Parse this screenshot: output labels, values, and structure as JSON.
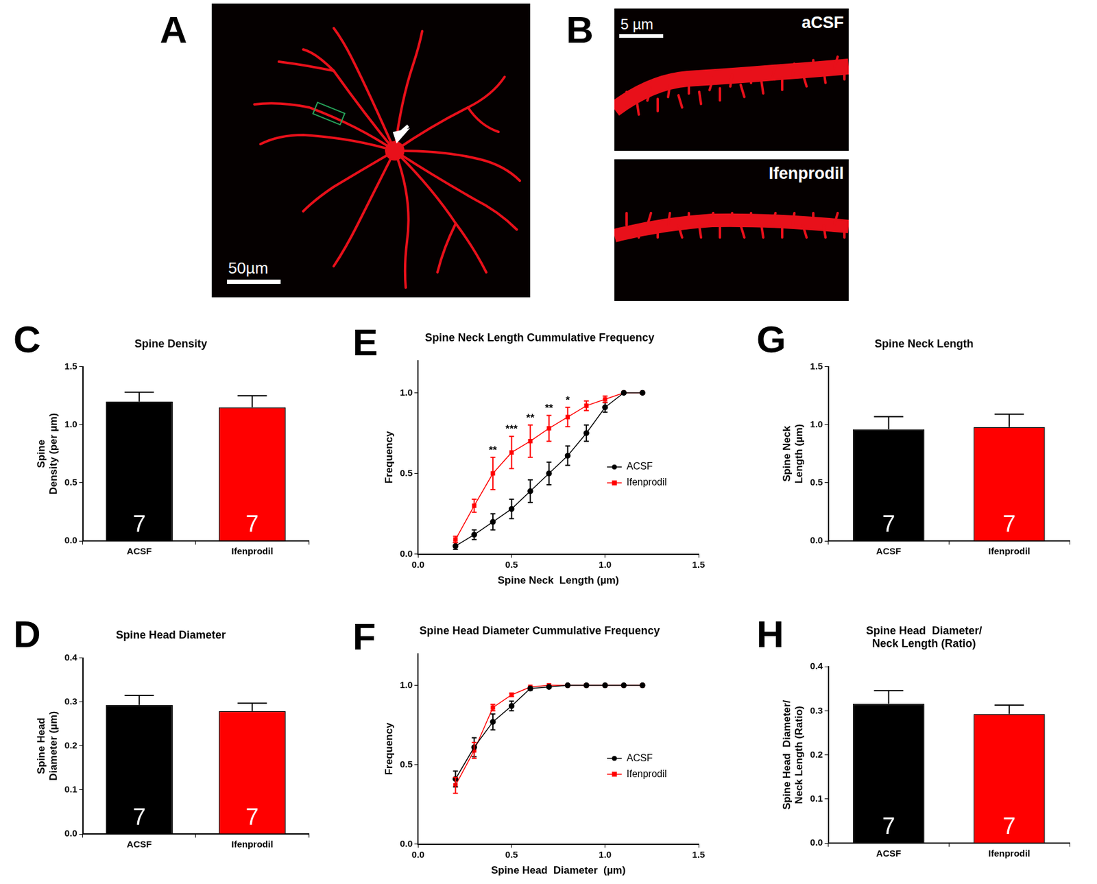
{
  "images": [
    {
      "panel": "A",
      "scale_bar": "50µm"
    },
    {
      "panel": "B",
      "scale_bar": "5 µm",
      "labels": [
        "aCSF",
        "Ifenprodil"
      ]
    }
  ],
  "chart_data": [
    {
      "panel": "C",
      "type": "bar",
      "title": "Spine Density",
      "categories": [
        "ACSF",
        "Ifenprodil"
      ],
      "values": [
        1.2,
        1.15
      ],
      "errors": [
        0.08,
        0.1
      ],
      "n": [
        7,
        7
      ],
      "colors": [
        "#000000",
        "#ff0000"
      ],
      "ylabel": [
        "Spine",
        "Density (per µm)"
      ],
      "ylim": [
        0,
        1.5
      ],
      "yticks": [
        {
          "value": 0,
          "label": "0.0"
        },
        0.5,
        {
          "value": 1,
          "label": "1.0"
        },
        1.5
      ],
      "grid": false
    },
    {
      "panel": "E",
      "type": "line",
      "title": "Spine Neck Length Cummulative Frequency",
      "x": [
        0.2,
        0.3,
        0.4,
        0.5,
        0.6,
        0.7,
        0.8,
        0.9,
        1.0,
        1.1,
        1.2
      ],
      "series": [
        {
          "name": "ACSF",
          "color": "#000000",
          "marker": "circle",
          "values": [
            0.05,
            0.12,
            0.2,
            0.28,
            0.39,
            0.5,
            0.61,
            0.75,
            0.91,
            1.0,
            1.0
          ],
          "errors": [
            0.02,
            0.03,
            0.05,
            0.06,
            0.07,
            0.07,
            0.06,
            0.05,
            0.03,
            0,
            0
          ]
        },
        {
          "name": "Ifenprodil",
          "color": "#ff0000",
          "marker": "square",
          "values": [
            0.09,
            0.3,
            0.5,
            0.63,
            0.7,
            0.78,
            0.85,
            0.92,
            0.96,
            1.0,
            1.0
          ],
          "errors": [
            0.02,
            0.04,
            0.1,
            0.1,
            0.1,
            0.08,
            0.06,
            0.03,
            0.02,
            0,
            0
          ]
        }
      ],
      "xlabel": "Spine Neck  Length (µm)",
      "ylabel": "Frequency",
      "xlim": [
        0,
        1.5
      ],
      "xticks": [
        {
          "value": 0,
          "label": "0.0"
        },
        0.5,
        {
          "value": 1,
          "label": "1.0"
        },
        1.5
      ],
      "ylim": [
        0,
        1.2
      ],
      "yticks": [
        {
          "value": 0,
          "label": "0.0"
        },
        0.5,
        {
          "value": 1,
          "label": "1.0"
        }
      ],
      "grid": false,
      "legend": "center right",
      "annotations": [
        {
          "x": 0.4,
          "y": 0.61,
          "text": "**"
        },
        {
          "x": 0.5,
          "y": 0.74,
          "text": "***"
        },
        {
          "x": 0.6,
          "y": 0.81,
          "text": "**"
        },
        {
          "x": 0.7,
          "y": 0.87,
          "text": "**"
        },
        {
          "x": 0.8,
          "y": 0.92,
          "text": "*"
        }
      ]
    },
    {
      "panel": "G",
      "type": "bar",
      "title": "Spine Neck Length",
      "categories": [
        "ACSF",
        "Ifenprodil"
      ],
      "values": [
        0.96,
        0.98
      ],
      "errors": [
        0.11,
        0.11
      ],
      "n": [
        7,
        7
      ],
      "colors": [
        "#000000",
        "#ff0000"
      ],
      "ylabel": [
        "Spine Neck",
        "Length (µm)"
      ],
      "ylim": [
        0,
        1.5
      ],
      "yticks": [
        {
          "value": 0,
          "label": "0.0"
        },
        0.5,
        {
          "value": 1,
          "label": "1.0"
        },
        1.5
      ],
      "grid": false
    },
    {
      "panel": "D",
      "type": "bar",
      "title": "Spine Head Diameter",
      "categories": [
        "ACSF",
        "Ifenprodil"
      ],
      "values": [
        0.293,
        0.279
      ],
      "errors": [
        0.022,
        0.018
      ],
      "n": [
        7,
        7
      ],
      "colors": [
        "#000000",
        "#ff0000"
      ],
      "ylabel": [
        "Spine Head",
        "Diameter (µm)"
      ],
      "ylim": [
        0,
        0.4
      ],
      "yticks": [
        {
          "value": 0,
          "label": "0.0"
        },
        0.1,
        0.2,
        0.3,
        0.4
      ],
      "grid": false
    },
    {
      "panel": "F",
      "type": "line",
      "title": "Spine Head Diameter Cummulative Frequency",
      "x": [
        0.2,
        0.3,
        0.4,
        0.5,
        0.6,
        0.7,
        0.8,
        0.9,
        1.0,
        1.1,
        1.2
      ],
      "series": [
        {
          "name": "ACSF",
          "color": "#000000",
          "marker": "circle",
          "values": [
            0.41,
            0.61,
            0.77,
            0.87,
            0.98,
            0.99,
            1.0,
            1.0,
            1.0,
            1.0,
            1.0
          ],
          "errors": [
            0.05,
            0.06,
            0.05,
            0.03,
            0.01,
            0,
            0,
            0,
            0,
            0,
            0
          ]
        },
        {
          "name": "Ifenprodil",
          "color": "#ff0000",
          "marker": "square",
          "values": [
            0.37,
            0.59,
            0.86,
            0.94,
            0.99,
            1.0,
            1.0,
            1.0,
            1.0,
            1.0,
            1.0
          ],
          "errors": [
            0.05,
            0.05,
            0.02,
            0.01,
            0,
            0,
            0,
            0,
            0,
            0,
            0
          ]
        }
      ],
      "xlabel": "Spine Head  Diameter  (µm)",
      "ylabel": "Frequency",
      "xlim": [
        0,
        1.5
      ],
      "xticks": [
        {
          "value": 0,
          "label": "0.0"
        },
        0.5,
        {
          "value": 1,
          "label": "1.0"
        },
        1.5
      ],
      "ylim": [
        0,
        1.2
      ],
      "yticks": [
        {
          "value": 0,
          "label": "0.0"
        },
        0.5,
        {
          "value": 1,
          "label": "1.0"
        }
      ],
      "grid": false,
      "legend": "center right"
    },
    {
      "panel": "H",
      "type": "bar",
      "title": [
        "Spine Head  Diameter/",
        "Neck Length (Ratio)"
      ],
      "categories": [
        "ACSF",
        "Ifenprodil"
      ],
      "values": [
        0.316,
        0.293
      ],
      "errors": [
        0.03,
        0.02
      ],
      "n": [
        7,
        7
      ],
      "colors": [
        "#000000",
        "#ff0000"
      ],
      "ylabel": [
        "Spine Head  Diameter/",
        "Neck Length (Ratio)"
      ],
      "ylim": [
        0,
        0.4
      ],
      "yticks": [
        {
          "value": 0,
          "label": "0.0"
        },
        0.1,
        0.2,
        0.3,
        0.4
      ],
      "grid": false
    }
  ]
}
